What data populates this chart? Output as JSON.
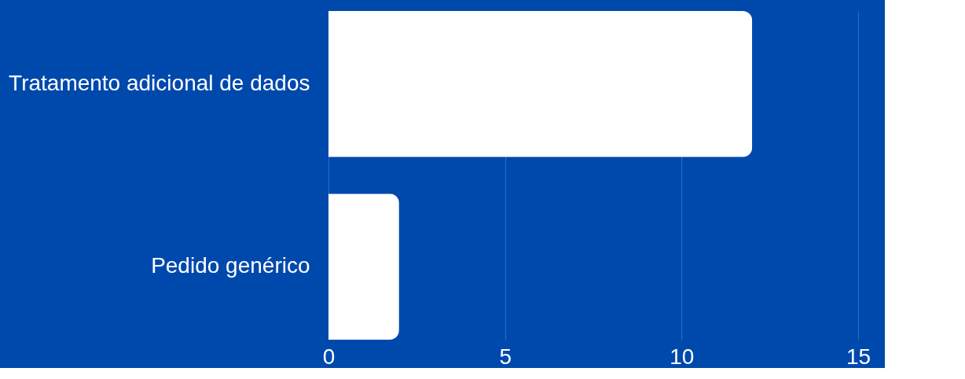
{
  "chart_data": {
    "type": "bar",
    "orientation": "horizontal",
    "categories": [
      "Tratamento adicional de dados",
      "Pedido genérico"
    ],
    "values": [
      12,
      2
    ],
    "color": "#ffffff",
    "xlim": [
      0,
      15
    ],
    "xticks": [
      0,
      5,
      10,
      15
    ],
    "grid": "x"
  }
}
